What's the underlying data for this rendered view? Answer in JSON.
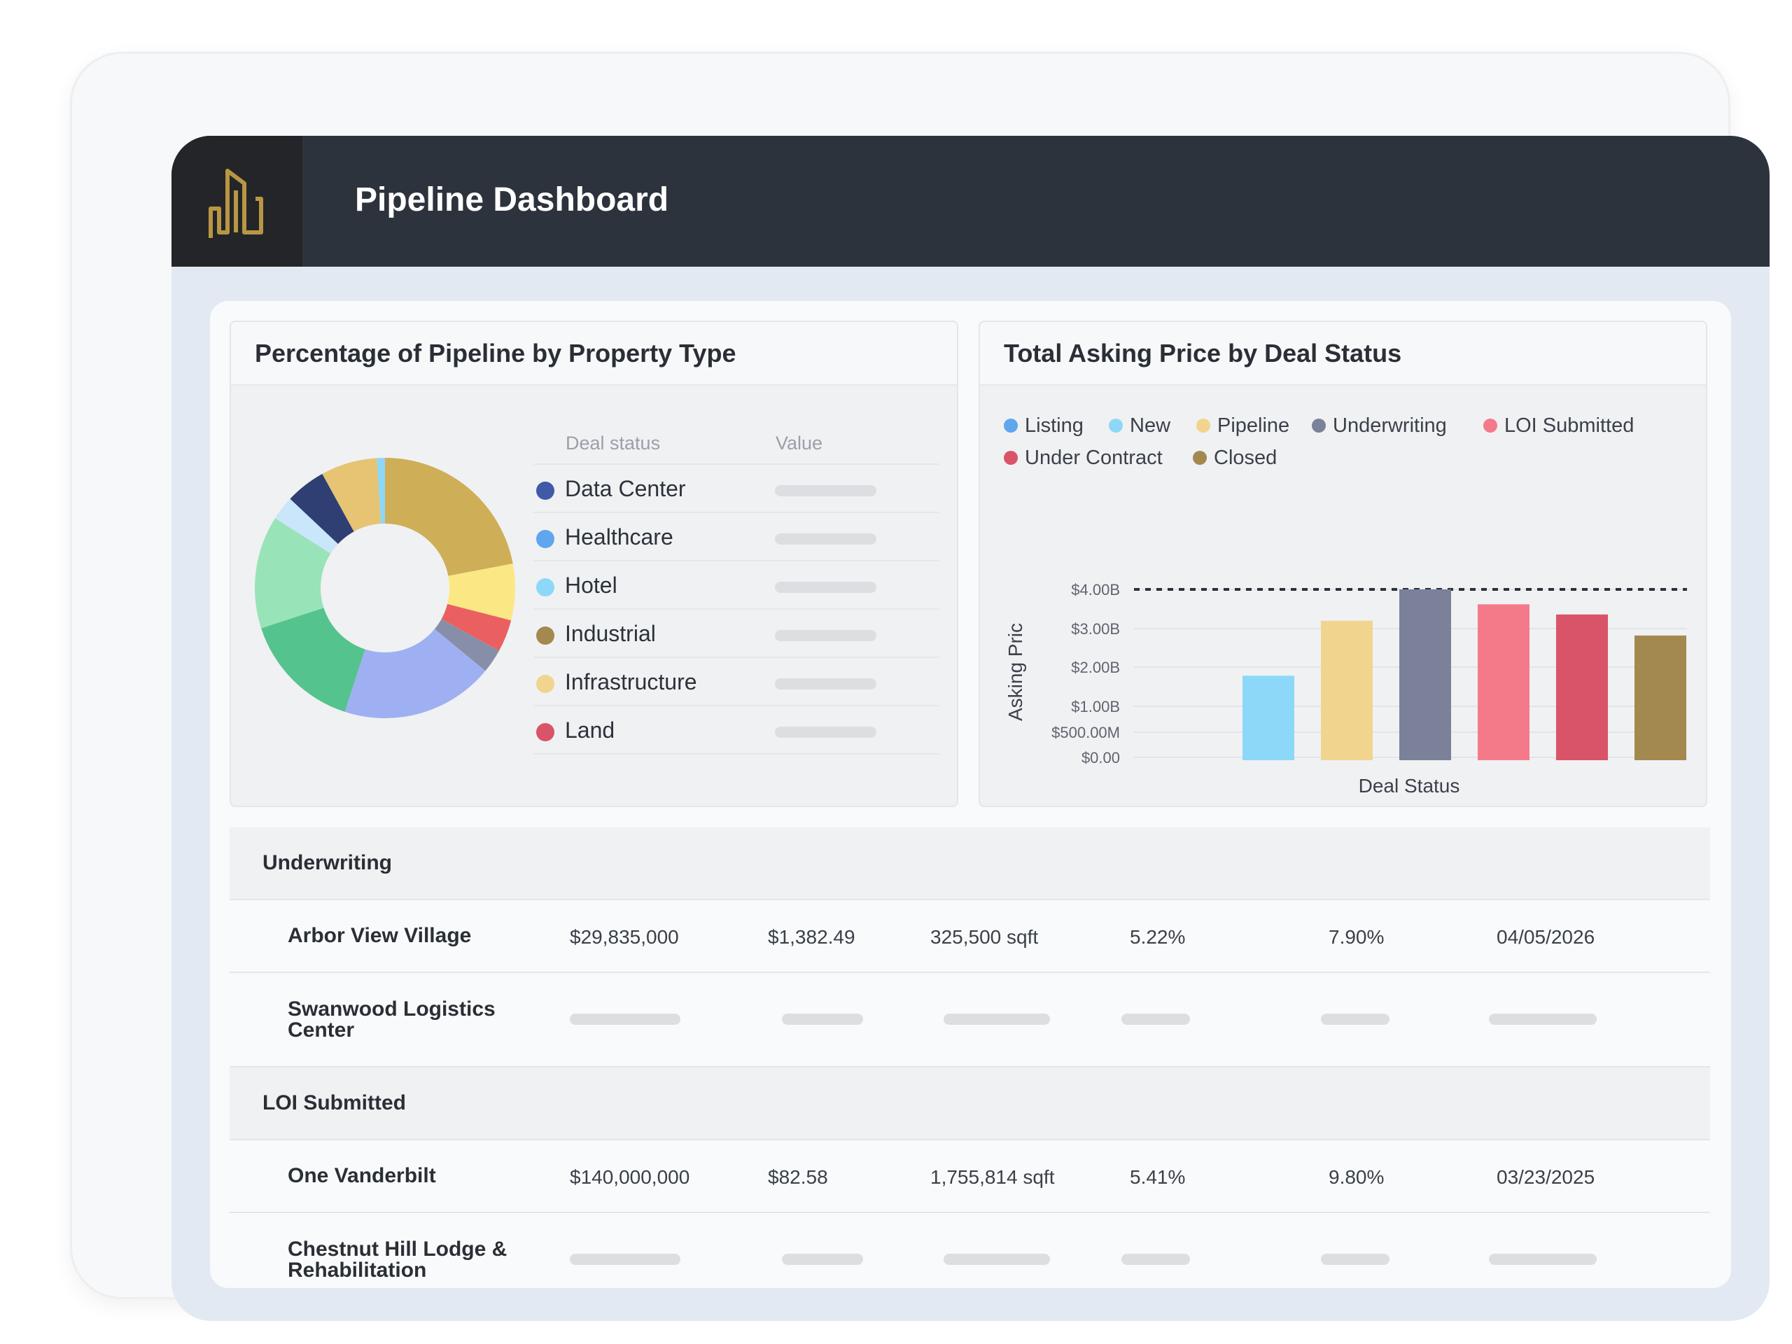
{
  "header": {
    "title": "Pipeline Dashboard",
    "logo_icon": "building-icon"
  },
  "donut_card": {
    "title": "Percentage of Pipeline by Property Type",
    "columns": {
      "status": "Deal status",
      "value": "Value"
    },
    "legend": [
      {
        "name": "Data Center",
        "color": "#3f5aa6"
      },
      {
        "name": "Healthcare",
        "color": "#5fa6ee"
      },
      {
        "name": "Hotel",
        "color": "#8dd8f8"
      },
      {
        "name": "Industrial",
        "color": "#a3894f"
      },
      {
        "name": "Infrastructure",
        "color": "#f1d48e"
      },
      {
        "name": "Land",
        "color": "#d95468"
      }
    ],
    "slices": [
      {
        "value": 22,
        "color": "#cfae58"
      },
      {
        "value": 7,
        "color": "#fbe885"
      },
      {
        "value": 4,
        "color": "#ea6060"
      },
      {
        "value": 3,
        "color": "#878fa8"
      },
      {
        "value": 19,
        "color": "#9fb0f2"
      },
      {
        "value": 15,
        "color": "#55c38d"
      },
      {
        "value": 14,
        "color": "#98e3b8"
      },
      {
        "value": 3,
        "color": "#c9e6fa"
      },
      {
        "value": 5,
        "color": "#2f3f74"
      },
      {
        "value": 7,
        "color": "#e6c473"
      },
      {
        "value": 1,
        "color": "#8dd8f8"
      }
    ]
  },
  "bar_card": {
    "title": "Total Asking Price by Deal Status",
    "legend": [
      {
        "name": "Listing",
        "color": "#5fa6ee"
      },
      {
        "name": "New",
        "color": "#8dd8f8"
      },
      {
        "name": "Pipeline",
        "color": "#f1d48e"
      },
      {
        "name": "Underwriting",
        "color": "#7a8199"
      },
      {
        "name": "LOI Submitted",
        "color": "#f47a8a"
      },
      {
        "name": "Under Contract",
        "color": "#d95468"
      },
      {
        "name": "Closed",
        "color": "#a3894f"
      }
    ]
  },
  "chart_data": {
    "type": "bar",
    "xlabel": "Deal Status",
    "ylabel": "Asking Pric",
    "ylim": [
      0,
      4.0
    ],
    "ytick_labels": [
      "$0.00",
      "$500.00M",
      "$1.00B",
      "$2.00B",
      "$3.00B",
      "$4.00B"
    ],
    "yticks": [
      0,
      0.5,
      1.0,
      2.0,
      3.0,
      4.0
    ],
    "reference_line": 4.0,
    "categories": [
      "Listing",
      "New",
      "Pipeline",
      "Underwriting",
      "LOI Submitted",
      "Under Contract",
      "Closed"
    ],
    "values": [
      0,
      1.78,
      3.2,
      4.0,
      3.62,
      3.36,
      2.82
    ],
    "legend_position": "top"
  },
  "table": {
    "sections": [
      {
        "label": "Underwriting",
        "rows": [
          {
            "name_lines": [
              "Arbor View Village"
            ],
            "values": [
              "$29,835,000",
              "$1,382.49",
              "325,500 sqft",
              "5.22%",
              "7.90%",
              "04/05/2026"
            ]
          },
          {
            "name_lines": [
              "Swanwood Logistics",
              "Center"
            ],
            "values": []
          }
        ]
      },
      {
        "label": "LOI Submitted",
        "rows": [
          {
            "name_lines": [
              "One Vanderbilt"
            ],
            "values": [
              "$140,000,000",
              "$82.58",
              "1,755,814 sqft",
              "5.41%",
              "9.80%",
              "03/23/2025"
            ]
          },
          {
            "name_lines": [
              "Chestnut Hill Lodge &",
              "Rehabilitation"
            ],
            "values": []
          }
        ]
      }
    ]
  }
}
